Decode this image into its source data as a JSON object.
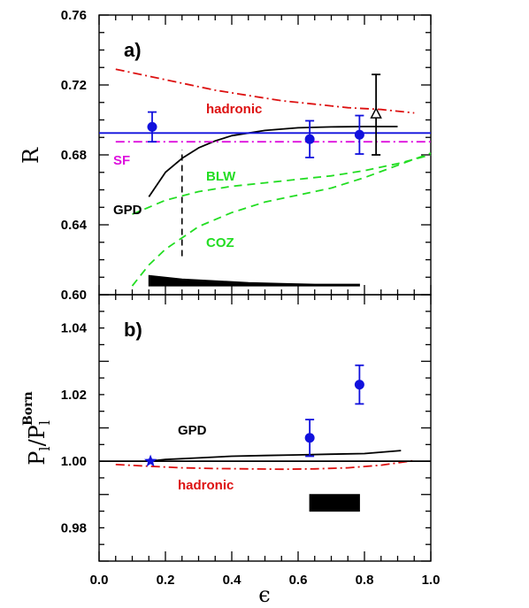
{
  "chart_data": [
    {
      "panel": "a)",
      "type": "line",
      "xlim": [
        0.0,
        1.0
      ],
      "ylim": [
        0.6,
        0.76
      ],
      "y_ticks": [
        "0.60",
        "0.64",
        "0.68",
        "0.72",
        "0.76"
      ],
      "ylabel": "R",
      "grid": false,
      "series": [
        {
          "name": "hadronic",
          "color": "#dd1111",
          "style": "dash-dot",
          "x": [
            0.05,
            0.15,
            0.25,
            0.35,
            0.45,
            0.55,
            0.65,
            0.75,
            0.85,
            0.95
          ],
          "y": [
            0.729,
            0.725,
            0.721,
            0.717,
            0.714,
            0.711,
            0.709,
            0.707,
            0.706,
            0.704
          ]
        },
        {
          "name": "GPD",
          "color": "#000000",
          "style": "solid",
          "x": [
            0.15,
            0.2,
            0.25,
            0.3,
            0.35,
            0.4,
            0.5,
            0.6,
            0.7,
            0.8,
            0.9
          ],
          "y": [
            0.656,
            0.67,
            0.678,
            0.684,
            0.688,
            0.691,
            0.694,
            0.6955,
            0.696,
            0.6962,
            0.6962
          ]
        },
        {
          "name": "SF",
          "color": "#dd11dd",
          "style": "dash-dot",
          "x": [
            0.05,
            1.0
          ],
          "y": [
            0.6875,
            0.6875
          ]
        },
        {
          "name": "",
          "color": "#1111dd",
          "style": "solid",
          "x": [
            0.0,
            1.0
          ],
          "y": [
            0.6925,
            0.6925
          ]
        },
        {
          "name": "BLW",
          "color": "#22dd22",
          "style": "dashed",
          "x": [
            0.1,
            0.2,
            0.3,
            0.4,
            0.5,
            0.6,
            0.7,
            0.8,
            0.9,
            1.0
          ],
          "y": [
            0.646,
            0.654,
            0.659,
            0.662,
            0.664,
            0.666,
            0.668,
            0.671,
            0.675,
            0.68
          ]
        },
        {
          "name": "COZ",
          "color": "#22dd22",
          "style": "dashed",
          "x": [
            0.1,
            0.15,
            0.2,
            0.3,
            0.4,
            0.5,
            0.6,
            0.7,
            0.8,
            0.9,
            1.0
          ],
          "y": [
            0.605,
            0.617,
            0.626,
            0.639,
            0.647,
            0.653,
            0.657,
            0.661,
            0.667,
            0.674,
            0.681
          ]
        }
      ],
      "vertical_dashed": {
        "x": 0.25,
        "y_from": 0.622,
        "y_to": 0.683
      },
      "points": [
        {
          "x": 0.16,
          "y": 0.696,
          "err": 0.0085,
          "marker": "circle",
          "color": "#1111dd"
        },
        {
          "x": 0.635,
          "y": 0.689,
          "err": 0.0105,
          "marker": "circle",
          "color": "#1111dd"
        },
        {
          "x": 0.785,
          "y": 0.6915,
          "err": 0.011,
          "marker": "circle",
          "color": "#1111dd"
        },
        {
          "x": 0.835,
          "y": 0.7035,
          "err_up": 0.0225,
          "err_down": 0.0235,
          "marker": "triangle-open",
          "color": "#000000"
        }
      ],
      "band": {
        "x": [
          0.15,
          0.25,
          0.35,
          0.45,
          0.55,
          0.65,
          0.75,
          0.785
        ],
        "y_top": [
          0.611,
          0.609,
          0.608,
          0.607,
          0.6065,
          0.606,
          0.606,
          0.606
        ],
        "y_bottom": 0.605
      }
    },
    {
      "panel": "b)",
      "type": "line",
      "xlim": [
        0.0,
        1.0
      ],
      "ylim": [
        0.97,
        1.05
      ],
      "x_ticks": [
        "0.0",
        "0.2",
        "0.4",
        "0.6",
        "0.8",
        "1.0"
      ],
      "y_ticks": [
        "0.98",
        "1.00",
        "1.02",
        "1.04"
      ],
      "xlabel": "ϵ",
      "ylabel_main": "P",
      "ylabel_sub": "l",
      "ylabel_den": "P",
      "ylabel_den_sup": "Born",
      "ylabel_den_sub": "l",
      "grid": false,
      "series": [
        {
          "name": "GPD",
          "color": "#000000",
          "style": "solid",
          "x": [
            0.15,
            0.2,
            0.3,
            0.4,
            0.5,
            0.6,
            0.7,
            0.8,
            0.91
          ],
          "y": [
            1.0,
            1.0005,
            1.001,
            1.0015,
            1.0017,
            1.0019,
            1.0021,
            1.0023,
            1.0032
          ]
        },
        {
          "name": "hadronic",
          "color": "#dd1111",
          "style": "dash-dot",
          "x": [
            0.05,
            0.15,
            0.25,
            0.35,
            0.45,
            0.55,
            0.65,
            0.75,
            0.85,
            0.95
          ],
          "y": [
            0.999,
            0.9985,
            0.998,
            0.9978,
            0.9977,
            0.9976,
            0.9977,
            0.998,
            0.9988,
            1.0002
          ]
        },
        {
          "name": "",
          "color": "#000000",
          "style": "solid",
          "x": [
            0.0,
            1.0
          ],
          "y": [
            1.0,
            1.0
          ]
        }
      ],
      "points": [
        {
          "x": 0.155,
          "y": 1.0,
          "marker": "star",
          "color": "#1111dd"
        },
        {
          "x": 0.635,
          "y": 1.007,
          "err": 0.0055,
          "marker": "circle",
          "color": "#1111dd"
        },
        {
          "x": 0.785,
          "y": 1.023,
          "err": 0.0058,
          "marker": "circle",
          "color": "#1111dd"
        }
      ],
      "band": {
        "x": [
          0.635,
          0.785
        ],
        "y_top": [
          0.99,
          0.99
        ],
        "y_bottom": 0.985
      }
    }
  ]
}
